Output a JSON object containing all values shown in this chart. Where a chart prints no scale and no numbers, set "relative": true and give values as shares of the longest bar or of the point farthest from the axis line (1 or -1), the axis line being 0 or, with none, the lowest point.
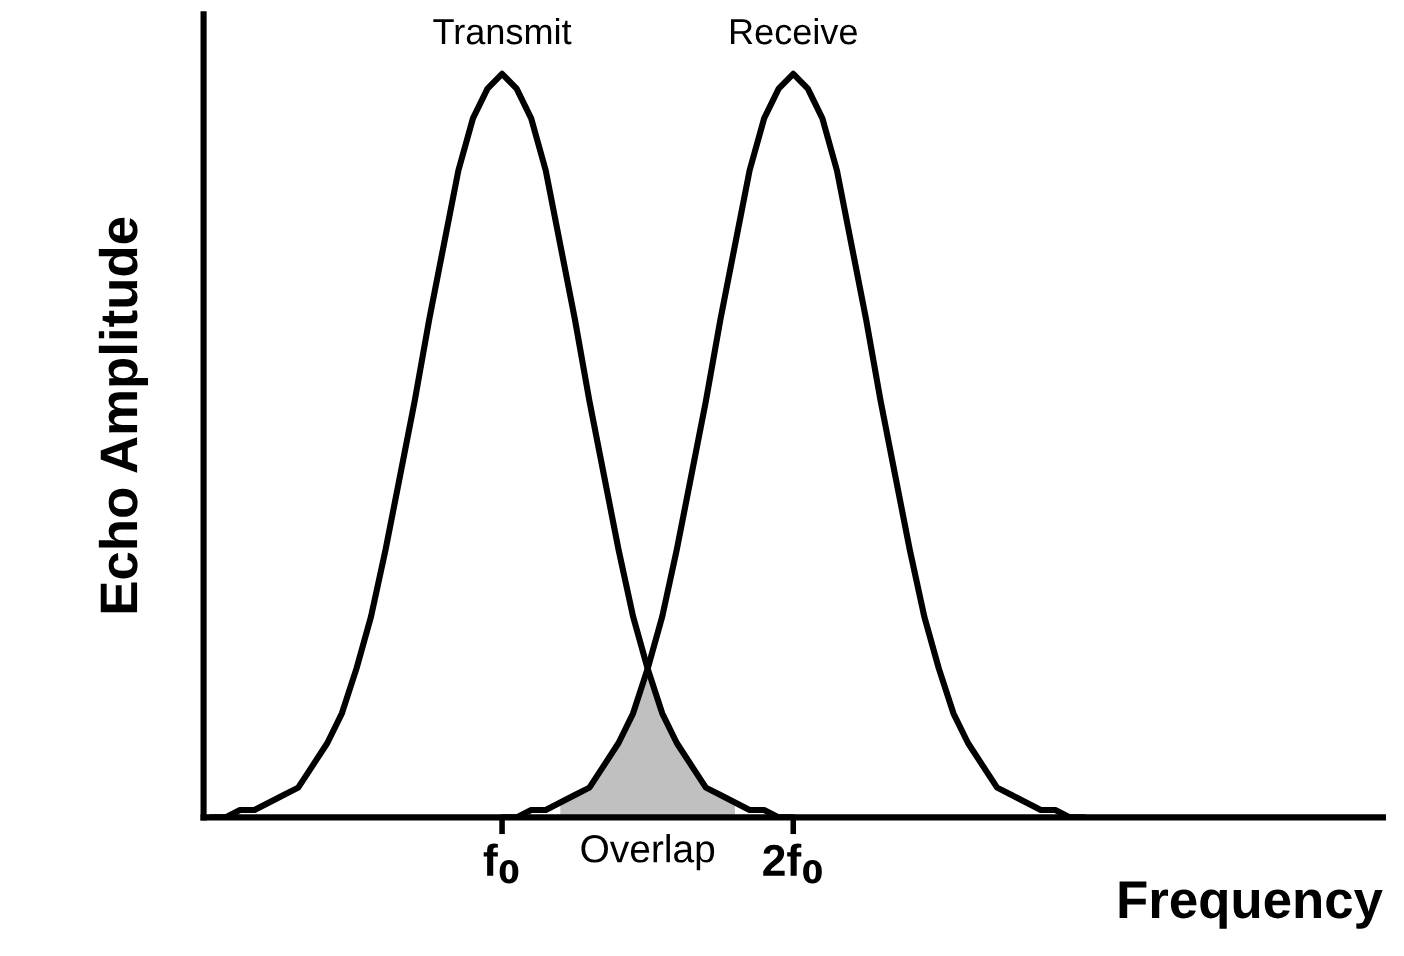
{
  "chart_data": {
    "type": "line",
    "relative": true,
    "xlabel": "Frequency",
    "ylabel": "Echo Amplitude",
    "tick_labels": "x",
    "grid": false,
    "legend": false,
    "categories": [
      null,
      null,
      null,
      null,
      null,
      null,
      null,
      null,
      null,
      null,
      null,
      null,
      null,
      null,
      null,
      null,
      null,
      null,
      null,
      null,
      "f$_{0}$",
      null,
      null,
      null,
      null,
      null,
      null,
      null,
      null,
      null,
      null,
      null,
      null,
      null,
      null,
      null,
      null,
      null,
      null,
      null,
      "2f$_{0}$",
      null,
      null,
      null,
      null,
      null,
      null,
      null,
      null,
      null,
      null,
      null,
      null,
      null,
      null,
      null,
      null,
      null,
      null,
      null,
      null,
      null,
      null,
      null,
      null,
      null,
      null,
      null,
      null,
      null,
      null,
      null,
      null,
      null,
      null,
      null,
      null,
      null,
      null,
      null,
      null
    ],
    "series": [
      {
        "name": "Transmit",
        "color": "#000000",
        "values": [
          0,
          0,
          0.01,
          0.01,
          0.02,
          0.03,
          0.04,
          0.07,
          0.1,
          0.14,
          0.2,
          0.27,
          0.36,
          0.46,
          0.56,
          0.67,
          0.77,
          0.87,
          0.94,
          0.98,
          1,
          0.98,
          0.94,
          0.87,
          0.77,
          0.67,
          0.56,
          0.46,
          0.36,
          0.27,
          0.2,
          0.14,
          0.1,
          0.07,
          0.04,
          0.03,
          0.02,
          0.01,
          0.01,
          0,
          0,
          null,
          null,
          null,
          null,
          null,
          null,
          null,
          null,
          null,
          null,
          null,
          null,
          null,
          null,
          null,
          null,
          null,
          null,
          null,
          null,
          null,
          null,
          null,
          null,
          null,
          null,
          null,
          null,
          null,
          null,
          null,
          null,
          null,
          null,
          null,
          null,
          null,
          null,
          null,
          null
        ]
      },
      {
        "name": "Receive",
        "color": "#000000",
        "values": [
          null,
          null,
          null,
          null,
          null,
          null,
          null,
          null,
          null,
          null,
          null,
          null,
          null,
          null,
          null,
          null,
          null,
          null,
          null,
          null,
          0,
          0,
          0.01,
          0.01,
          0.02,
          0.03,
          0.04,
          0.07,
          0.1,
          0.14,
          0.2,
          0.27,
          0.36,
          0.46,
          0.56,
          0.67,
          0.77,
          0.87,
          0.94,
          0.98,
          1,
          0.98,
          0.94,
          0.87,
          0.77,
          0.67,
          0.56,
          0.46,
          0.36,
          0.27,
          0.2,
          0.14,
          0.1,
          0.07,
          0.04,
          0.03,
          0.02,
          0.01,
          0.01,
          0,
          0,
          null,
          null,
          null,
          null,
          null,
          null,
          null,
          null,
          null,
          null,
          null,
          null,
          null,
          null,
          null,
          null,
          null,
          null,
          null,
          null
        ]
      },
      {
        "type": "area",
        "color": "#c0c0c0",
        "values": [
          null,
          null,
          null,
          null,
          null,
          null,
          null,
          null,
          null,
          null,
          null,
          null,
          null,
          null,
          null,
          null,
          null,
          null,
          null,
          null,
          null,
          null,
          null,
          null,
          0.02,
          0.03,
          0.04,
          0.07,
          0.1,
          0.14,
          0.2,
          0.14,
          0.1,
          0.07,
          0.04,
          0.03,
          0.02,
          null,
          null,
          null,
          null,
          null,
          null,
          null,
          null,
          null,
          null,
          null,
          null,
          null,
          null,
          null,
          null,
          null,
          null,
          null,
          null,
          null,
          null,
          null,
          null,
          null,
          null,
          null,
          null,
          null,
          null,
          null,
          null,
          null,
          null,
          null,
          null,
          null,
          null,
          null,
          null,
          null,
          null,
          null,
          null
        ]
      }
    ],
    "annotations": [
      "Overlap"
    ]
  }
}
